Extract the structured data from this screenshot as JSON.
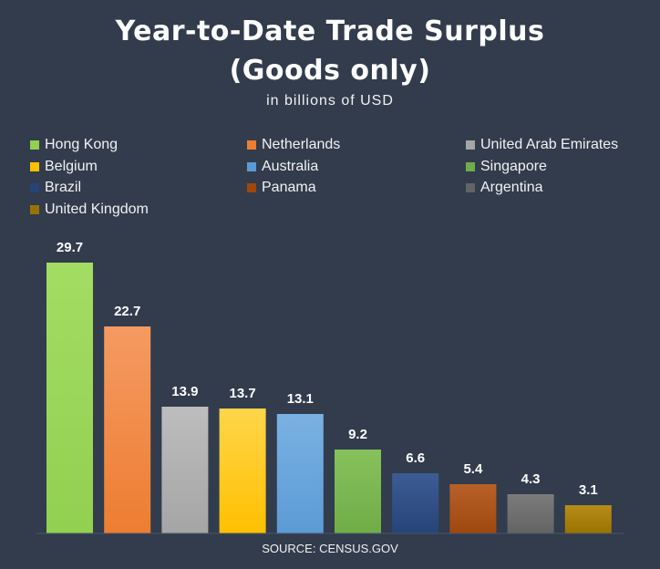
{
  "chart_data": {
    "type": "bar",
    "title_line1": "Year-to-Date Trade Surplus",
    "title_line2": "(Goods only)",
    "subtitle": "in billions of USD",
    "source": "SOURCE: CENSUS.GOV",
    "categories": [
      "Hong Kong",
      "Netherlands",
      "United Arab Emirates",
      "Belgium",
      "Australia",
      "Singapore",
      "Brazil",
      "Panama",
      "Argentina",
      "United Kingdom"
    ],
    "values": [
      29.7,
      22.7,
      13.9,
      13.7,
      13.1,
      9.2,
      6.6,
      5.4,
      4.3,
      3.1
    ],
    "value_labels": [
      "29.7",
      "22.7",
      "13.9",
      "13.7",
      "13.1",
      "9.2",
      "6.6",
      "5.4",
      "4.3",
      "3.1"
    ],
    "colors": [
      "#92d050",
      "#ed7d31",
      "#a5a5a5",
      "#ffc000",
      "#5b9bd5",
      "#70ad47",
      "#264478",
      "#9e480e",
      "#636363",
      "#997300"
    ],
    "highlight_colors": [
      "#a3dd63",
      "#f59a62",
      "#bdbdbd",
      "#ffd54a",
      "#7ab1e2",
      "#86c15c",
      "#3d5c95",
      "#b9602a",
      "#7c7c7c",
      "#b88c1a"
    ],
    "ylim": [
      0,
      30
    ],
    "xlabel": "",
    "ylabel": "",
    "legend_position": "top",
    "grid": false
  }
}
